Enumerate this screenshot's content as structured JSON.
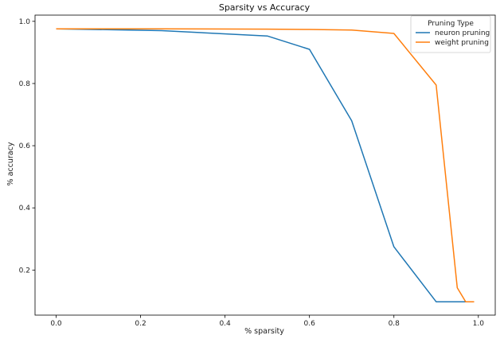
{
  "chart_data": {
    "type": "line",
    "title": "Sparsity vs Accuracy",
    "xlabel": "% sparsity",
    "ylabel": "% accuracy",
    "xlim": [
      -0.05,
      1.04
    ],
    "ylim": [
      0.055,
      1.02
    ],
    "xticks": [
      0.0,
      0.2,
      0.4,
      0.6,
      0.8,
      1.0
    ],
    "xtick_labels": [
      "0.0",
      "0.2",
      "0.4",
      "0.6",
      "0.8",
      "1.0"
    ],
    "yticks": [
      0.2,
      0.4,
      0.6,
      0.8,
      1.0
    ],
    "ytick_labels": [
      "0.2",
      "0.4",
      "0.6",
      "0.8",
      "1.0"
    ],
    "grid": false,
    "legend": {
      "title": "Pruning Type",
      "position": "top-right"
    },
    "series": [
      {
        "name": "neuron pruning",
        "color": "#1f77b4",
        "x": [
          0.0,
          0.25,
          0.5,
          0.6,
          0.7,
          0.8,
          0.9,
          0.95,
          0.97,
          0.99
        ],
        "y": [
          0.976,
          0.97,
          0.953,
          0.91,
          0.68,
          0.275,
          0.098,
          0.098,
          0.098,
          0.098
        ]
      },
      {
        "name": "weight pruning",
        "color": "#ff7f0e",
        "x": [
          0.0,
          0.25,
          0.5,
          0.6,
          0.7,
          0.8,
          0.9,
          0.95,
          0.97,
          0.99
        ],
        "y": [
          0.976,
          0.976,
          0.975,
          0.974,
          0.972,
          0.961,
          0.795,
          0.143,
          0.098,
          0.098
        ]
      }
    ]
  }
}
